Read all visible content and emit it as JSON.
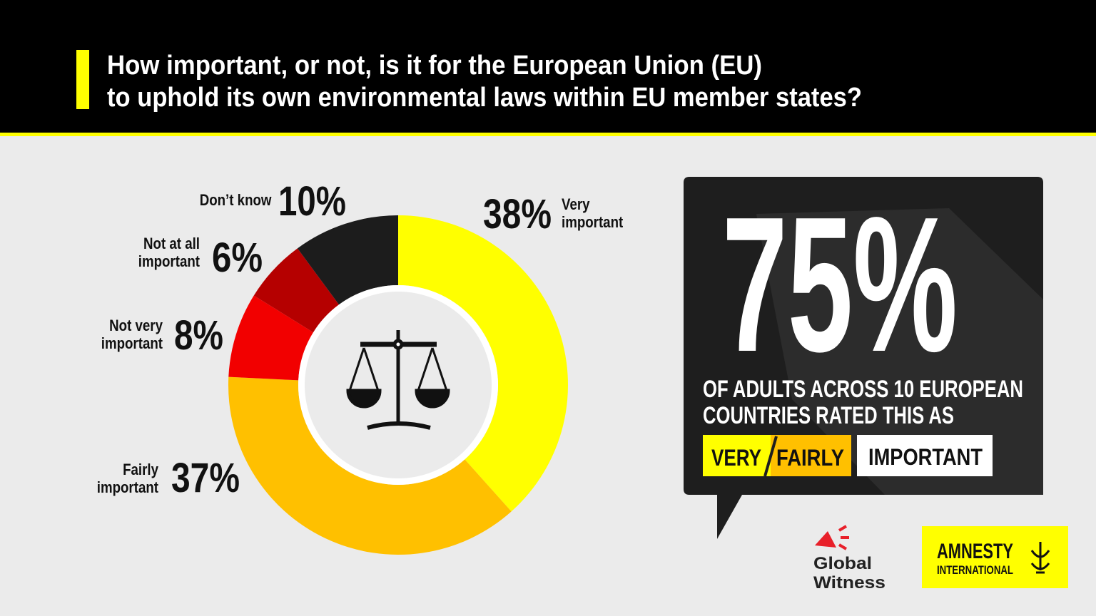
{
  "header": {
    "title_lines": [
      "How important, or not, is it for the European Union (EU)",
      "to uphold its own environmental laws within EU member states?"
    ]
  },
  "chart_data": {
    "type": "pie",
    "donut": true,
    "categories": [
      "Very important",
      "Fairly important",
      "Not very important",
      "Not at all important",
      "Don’t know"
    ],
    "values": [
      38,
      37,
      8,
      6,
      10
    ],
    "value_labels": [
      "38%",
      "37%",
      "8%",
      "6%",
      "10%"
    ],
    "colors": [
      "#ffff00",
      "#ffc000",
      "#f20000",
      "#b50000",
      "#1c1c1c"
    ]
  },
  "callout": {
    "figure": "75%",
    "text_lines": [
      "OF ADULTS ACROSS 10 EUROPEAN",
      "COUNTRIES RATED THIS AS"
    ],
    "tags": [
      "VERY",
      "FAIRLY",
      "IMPORTANT"
    ]
  },
  "logos": {
    "global_witness": [
      "Global",
      "Witness"
    ],
    "amnesty": [
      "AMNESTY",
      "INTERNATIONAL"
    ]
  }
}
